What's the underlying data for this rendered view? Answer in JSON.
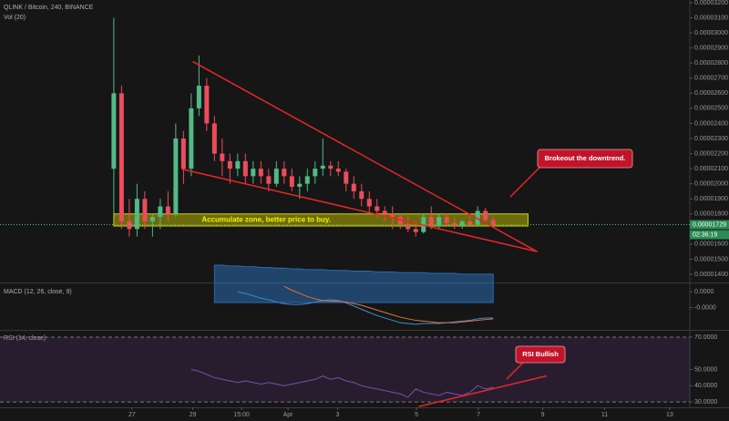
{
  "chart_data": {
    "type": "candlestick",
    "title": "QLINK / Bitcoin, 240, BINANCE",
    "opens": [
      2.1e-05,
      2.6e-05,
      1.75e-05,
      1.7e-05,
      1.9e-05,
      1.75e-05,
      1.78e-05,
      1.85e-05,
      1.8e-05,
      2.3e-05,
      2.1e-05,
      2.5e-05,
      2.65e-05,
      2.4e-05,
      2.2e-05,
      2.15e-05,
      2.1e-05,
      2.15e-05,
      2.05e-05,
      2.1e-05,
      2.05e-05,
      2e-05,
      2.1e-05,
      2.05e-05,
      1.98e-05,
      2e-05,
      2.05e-05,
      2.1e-05,
      2.12e-05,
      2.1e-05,
      2.08e-05,
      2e-05,
      1.95e-05,
      1.9e-05,
      1.85e-05,
      1.82e-05,
      1.8e-05,
      1.78e-05,
      1.73e-05,
      1.7e-05,
      1.68e-05,
      1.78e-05,
      1.72e-05,
      1.78e-05,
      1.74e-05,
      1.72e-05,
      1.75e-05,
      1.73e-05,
      1.82e-05,
      1.76e-05
    ],
    "highs": [
      3.1e-05,
      2.65e-05,
      1.9e-05,
      2e-05,
      1.95e-05,
      1.8e-05,
      1.9e-05,
      1.95e-05,
      2.4e-05,
      2.35e-05,
      2.6e-05,
      2.85e-05,
      2.7e-05,
      2.45e-05,
      2.3e-05,
      2.2e-05,
      2.2e-05,
      2.2e-05,
      2.15e-05,
      2.15e-05,
      2.1e-05,
      2.15e-05,
      2.15e-05,
      2.1e-05,
      2.05e-05,
      2.1e-05,
      2.15e-05,
      2.3e-05,
      2.15e-05,
      2.15e-05,
      2.1e-05,
      2.05e-05,
      2e-05,
      1.95e-05,
      1.9e-05,
      1.85e-05,
      1.85e-05,
      1.8e-05,
      1.78e-05,
      1.75e-05,
      1.8e-05,
      1.85e-05,
      1.8e-05,
      1.8e-05,
      1.78e-05,
      1.76e-05,
      1.8e-05,
      1.85e-05,
      1.84e-05,
      1.78e-05
    ],
    "lows": [
      1.8e-05,
      1.7e-05,
      1.65e-05,
      1.65e-05,
      1.7e-05,
      1.65e-05,
      1.7e-05,
      1.75e-05,
      1.78e-05,
      2e-05,
      2.05e-05,
      2.45e-05,
      2.35e-05,
      2.15e-05,
      2.05e-05,
      2e-05,
      2.05e-05,
      2e-05,
      2e-05,
      2e-05,
      1.95e-05,
      1.98e-05,
      2e-05,
      1.95e-05,
      1.9e-05,
      1.95e-05,
      2e-05,
      2.05e-05,
      2.05e-05,
      2.05e-05,
      1.95e-05,
      1.9e-05,
      1.85e-05,
      1.8e-05,
      1.78e-05,
      1.75e-05,
      1.7e-05,
      1.7e-05,
      1.68e-05,
      1.65e-05,
      1.67e-05,
      1.7e-05,
      1.7e-05,
      1.72e-05,
      1.7e-05,
      1.7e-05,
      1.72e-05,
      1.72e-05,
      1.74e-05,
      1.71e-05
    ],
    "closes": [
      2.6e-05,
      1.75e-05,
      1.7e-05,
      1.9e-05,
      1.75e-05,
      1.78e-05,
      1.85e-05,
      1.8e-05,
      2.3e-05,
      2.1e-05,
      2.5e-05,
      2.65e-05,
      2.4e-05,
      2.2e-05,
      2.15e-05,
      2.1e-05,
      2.15e-05,
      2.05e-05,
      2.1e-05,
      2.05e-05,
      2e-05,
      2.1e-05,
      2.05e-05,
      1.98e-05,
      2e-05,
      2.05e-05,
      2.1e-05,
      2.12e-05,
      2.1e-05,
      2.08e-05,
      2e-05,
      1.95e-05,
      1.9e-05,
      1.85e-05,
      1.82e-05,
      1.8e-05,
      1.78e-05,
      1.73e-05,
      1.7e-05,
      1.68e-05,
      1.78e-05,
      1.72e-05,
      1.78e-05,
      1.74e-05,
      1.72e-05,
      1.75e-05,
      1.73e-05,
      1.82e-05,
      1.76e-05,
      1.729e-05
    ],
    "up_color": "#53b987",
    "down_color": "#eb4d5c",
    "last_price_label": "0.00001729",
    "countdown": "02:36:19",
    "xlim": [
      -14.7,
      74.4
    ],
    "xticks": [
      {
        "value": 2.35,
        "label": "27"
      },
      {
        "value": 10.2,
        "label": "29"
      },
      {
        "value": 16.5,
        "label": "15:00"
      },
      {
        "value": 22.5,
        "label": "Apr"
      },
      {
        "value": 28.9,
        "label": "3"
      },
      {
        "value": 39.1,
        "label": "5"
      },
      {
        "value": 47.1,
        "label": "7"
      },
      {
        "value": 55.4,
        "label": "9"
      },
      {
        "value": 63.4,
        "label": "11"
      },
      {
        "value": 71.8,
        "label": "13"
      }
    ],
    "ylim": [
      1.3456e-05,
      3.2181e-05
    ],
    "yticks": [
      {
        "value": 3.2e-05,
        "label": "0.00003200"
      },
      {
        "value": 3.1e-05,
        "label": "0.00003100"
      },
      {
        "value": 3e-05,
        "label": "0.00003000"
      },
      {
        "value": 2.9e-05,
        "label": "0.00002900"
      },
      {
        "value": 2.8e-05,
        "label": "0.00002800"
      },
      {
        "value": 2.7e-05,
        "label": "0.00002700"
      },
      {
        "value": 2.6e-05,
        "label": "0.00002600"
      },
      {
        "value": 2.5e-05,
        "label": "0.00002500"
      },
      {
        "value": 2.4e-05,
        "label": "0.00002400"
      },
      {
        "value": 2.3e-05,
        "label": "0.00002300"
      },
      {
        "value": 2.2e-05,
        "label": "0.00002200"
      },
      {
        "value": 2.1e-05,
        "label": "0.00002100"
      },
      {
        "value": 2e-05,
        "label": "0.00002000"
      },
      {
        "value": 1.9e-05,
        "label": "0.00001900"
      },
      {
        "value": 1.8e-05,
        "label": "0.00001800"
      },
      {
        "value": 1.6e-05,
        "label": "0.00001600"
      },
      {
        "value": 1.5e-05,
        "label": "0.00001500"
      },
      {
        "value": 1.4e-05,
        "label": "0.00001400"
      }
    ],
    "trendlines": [
      {
        "x": [
          10.2,
          54.7
        ],
        "y": [
          2.81e-05,
          1.55e-05
        ]
      },
      {
        "x": [
          8.8,
          54.7
        ],
        "y": [
          2.097e-05,
          1.55e-05
        ]
      }
    ],
    "zone": {
      "text": "Accumulate zone, better price to buy.",
      "x": [
        0,
        53.5
      ],
      "y": [
        1.72e-05,
        1.8e-05
      ]
    },
    "callout": "Brokeout the downtrend.",
    "volume": {
      "label": "Vol (20)",
      "color": "#2a6bb0",
      "ylim": [
        0,
        100
      ],
      "ma": [
        null,
        null,
        null,
        null,
        null,
        null,
        null,
        null,
        null,
        null,
        null,
        null,
        null,
        50,
        50,
        49,
        49,
        48,
        48,
        47,
        47,
        46,
        46,
        45,
        45,
        44,
        44,
        44,
        43,
        43,
        43,
        42,
        42,
        42,
        41,
        41,
        41,
        40,
        40,
        40,
        40,
        39,
        39,
        39,
        39,
        38,
        38,
        38,
        38,
        38
      ]
    },
    "macd": {
      "label": "MACD (12, 26, close, 9)",
      "macd_color": "#3a8fd6",
      "signal_color": "#e0733a",
      "ylim": [
        -3.8e-07,
        2.06e-07
      ],
      "yticks": [
        {
          "value": 1e-07,
          "label": "0.0000"
        },
        {
          "value": -1e-07,
          "label": "-0.0000"
        }
      ],
      "macd": [
        null,
        null,
        null,
        null,
        null,
        null,
        null,
        null,
        null,
        null,
        null,
        null,
        null,
        null,
        null,
        null,
        1e-07,
        8e-08,
        5e-08,
        2e-08,
        0,
        -3e-08,
        -5e-08,
        -6e-08,
        -6e-08,
        -5e-08,
        -3e-08,
        -1e-08,
        0,
        -1e-08,
        -4e-08,
        -8e-08,
        -1.2e-07,
        -1.6e-07,
        -2e-07,
        -2.3e-07,
        -2.6e-07,
        -2.9e-07,
        -3e-07,
        -3.1e-07,
        -3e-07,
        -3e-07,
        -3e-07,
        -2.9e-07,
        -2.8e-07,
        -2.7e-07,
        -2.6e-07,
        -2.4e-07,
        -2.3e-07,
        -2.3e-07
      ],
      "signal": [
        null,
        null,
        null,
        null,
        null,
        null,
        null,
        null,
        null,
        null,
        null,
        null,
        null,
        null,
        null,
        null,
        null,
        null,
        null,
        null,
        null,
        null,
        1.7e-07,
        1.2e-07,
        8e-08,
        4e-08,
        1e-08,
        -1e-08,
        -2e-08,
        -2e-08,
        -3e-08,
        -5e-08,
        -7e-08,
        -1e-07,
        -1.3e-07,
        -1.6e-07,
        -1.9e-07,
        -2.2e-07,
        -2.4e-07,
        -2.6e-07,
        -2.7e-07,
        -2.8e-07,
        -2.9e-07,
        -2.9e-07,
        -2.9e-07,
        -2.8e-07,
        -2.7e-07,
        -2.6e-07,
        -2.5e-07,
        -2.4e-07
      ]
    },
    "rsi": {
      "label": "RSI (14, close)",
      "color": "#7b4fa8",
      "ylim": [
        26.7,
        73.9
      ],
      "yticks": [
        {
          "value": 70,
          "label": "70.0000"
        },
        {
          "value": 50,
          "label": "50.0000"
        },
        {
          "value": 40,
          "label": "40.0000"
        },
        {
          "value": 30,
          "label": "30.0000"
        }
      ],
      "band": [
        30,
        70
      ],
      "values": [
        null,
        null,
        null,
        null,
        null,
        null,
        null,
        null,
        null,
        null,
        50,
        49,
        47,
        45,
        44,
        43,
        42,
        43,
        42,
        41,
        42,
        41,
        40,
        41,
        42,
        43,
        44,
        46,
        44,
        45,
        43,
        42,
        40,
        39,
        38,
        37,
        36,
        35,
        33,
        38,
        36,
        35,
        34,
        36,
        35,
        34,
        36,
        40,
        38,
        39
      ],
      "trendline": {
        "x": [
          39.4,
          55.9
        ],
        "y": [
          27.2,
          46.1
        ]
      },
      "callout": "RSI Bullish"
    }
  }
}
